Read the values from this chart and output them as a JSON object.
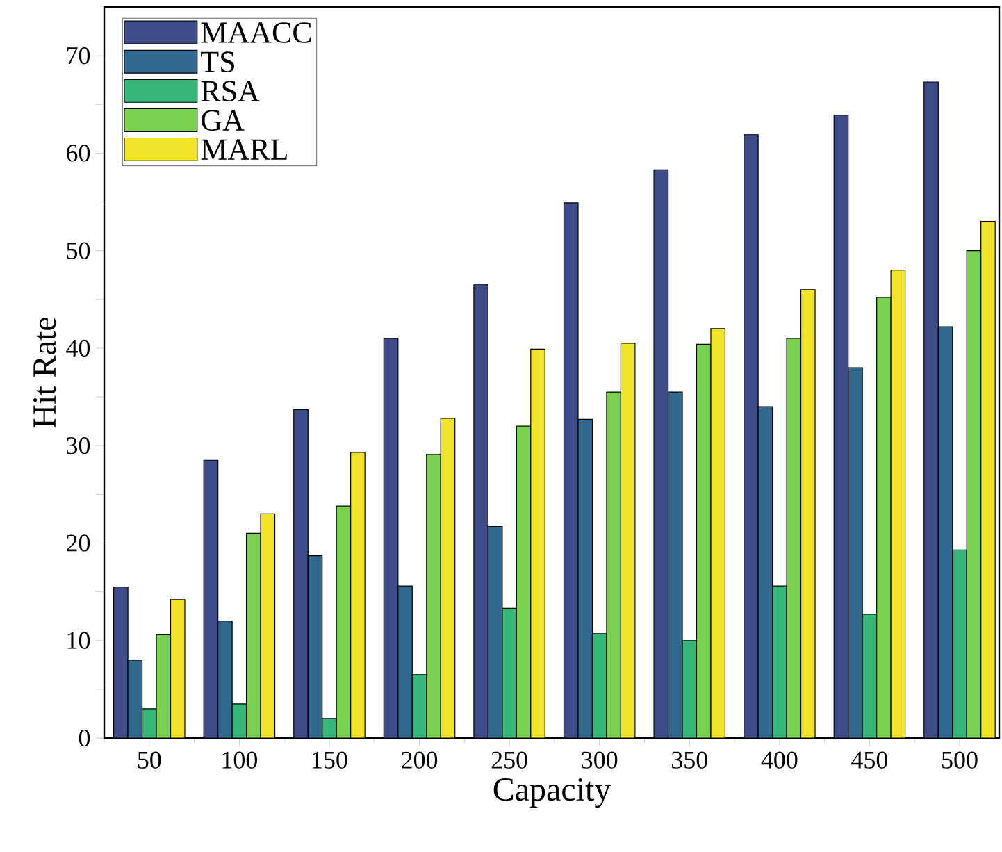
{
  "chart_data": {
    "type": "bar",
    "xlabel": "Capacity",
    "ylabel": "Hit Rate",
    "categories": [
      "50",
      "100",
      "150",
      "200",
      "250",
      "300",
      "350",
      "400",
      "450",
      "500"
    ],
    "series": [
      {
        "name": "MAACC",
        "color": "#3e4c8a",
        "values": [
          15.5,
          28.5,
          33.7,
          41,
          46.5,
          54.9,
          58.3,
          61.9,
          63.9,
          67.3
        ]
      },
      {
        "name": "TS",
        "color": "#31688e",
        "values": [
          8,
          12,
          18.7,
          15.6,
          21.7,
          32.7,
          35.5,
          34,
          38,
          42.2
        ]
      },
      {
        "name": "RSA",
        "color": "#35b779",
        "values": [
          3,
          3.5,
          2,
          6.5,
          13.3,
          10.7,
          10,
          15.6,
          12.7,
          19.3
        ]
      },
      {
        "name": "GA",
        "color": "#7ad151",
        "values": [
          10.6,
          21,
          23.8,
          29.1,
          32,
          35.5,
          40.4,
          41,
          45.2,
          50
        ]
      },
      {
        "name": "MARL",
        "color": "#f1e22a",
        "values": [
          14.2,
          23,
          29.3,
          32.8,
          39.9,
          40.5,
          42,
          46,
          48,
          53
        ]
      }
    ],
    "ylim": [
      0,
      75
    ],
    "yticks": [
      0,
      {
        "value": 5,
        "label": null
      },
      10,
      {
        "value": 15,
        "label": null
      },
      20,
      {
        "value": 25,
        "label": null
      },
      30,
      {
        "value": 35,
        "label": null
      },
      40,
      {
        "value": 45,
        "label": null
      },
      50,
      {
        "value": 55,
        "label": null
      },
      60,
      {
        "value": 65,
        "label": null
      },
      70
    ],
    "legend": "top left"
  }
}
